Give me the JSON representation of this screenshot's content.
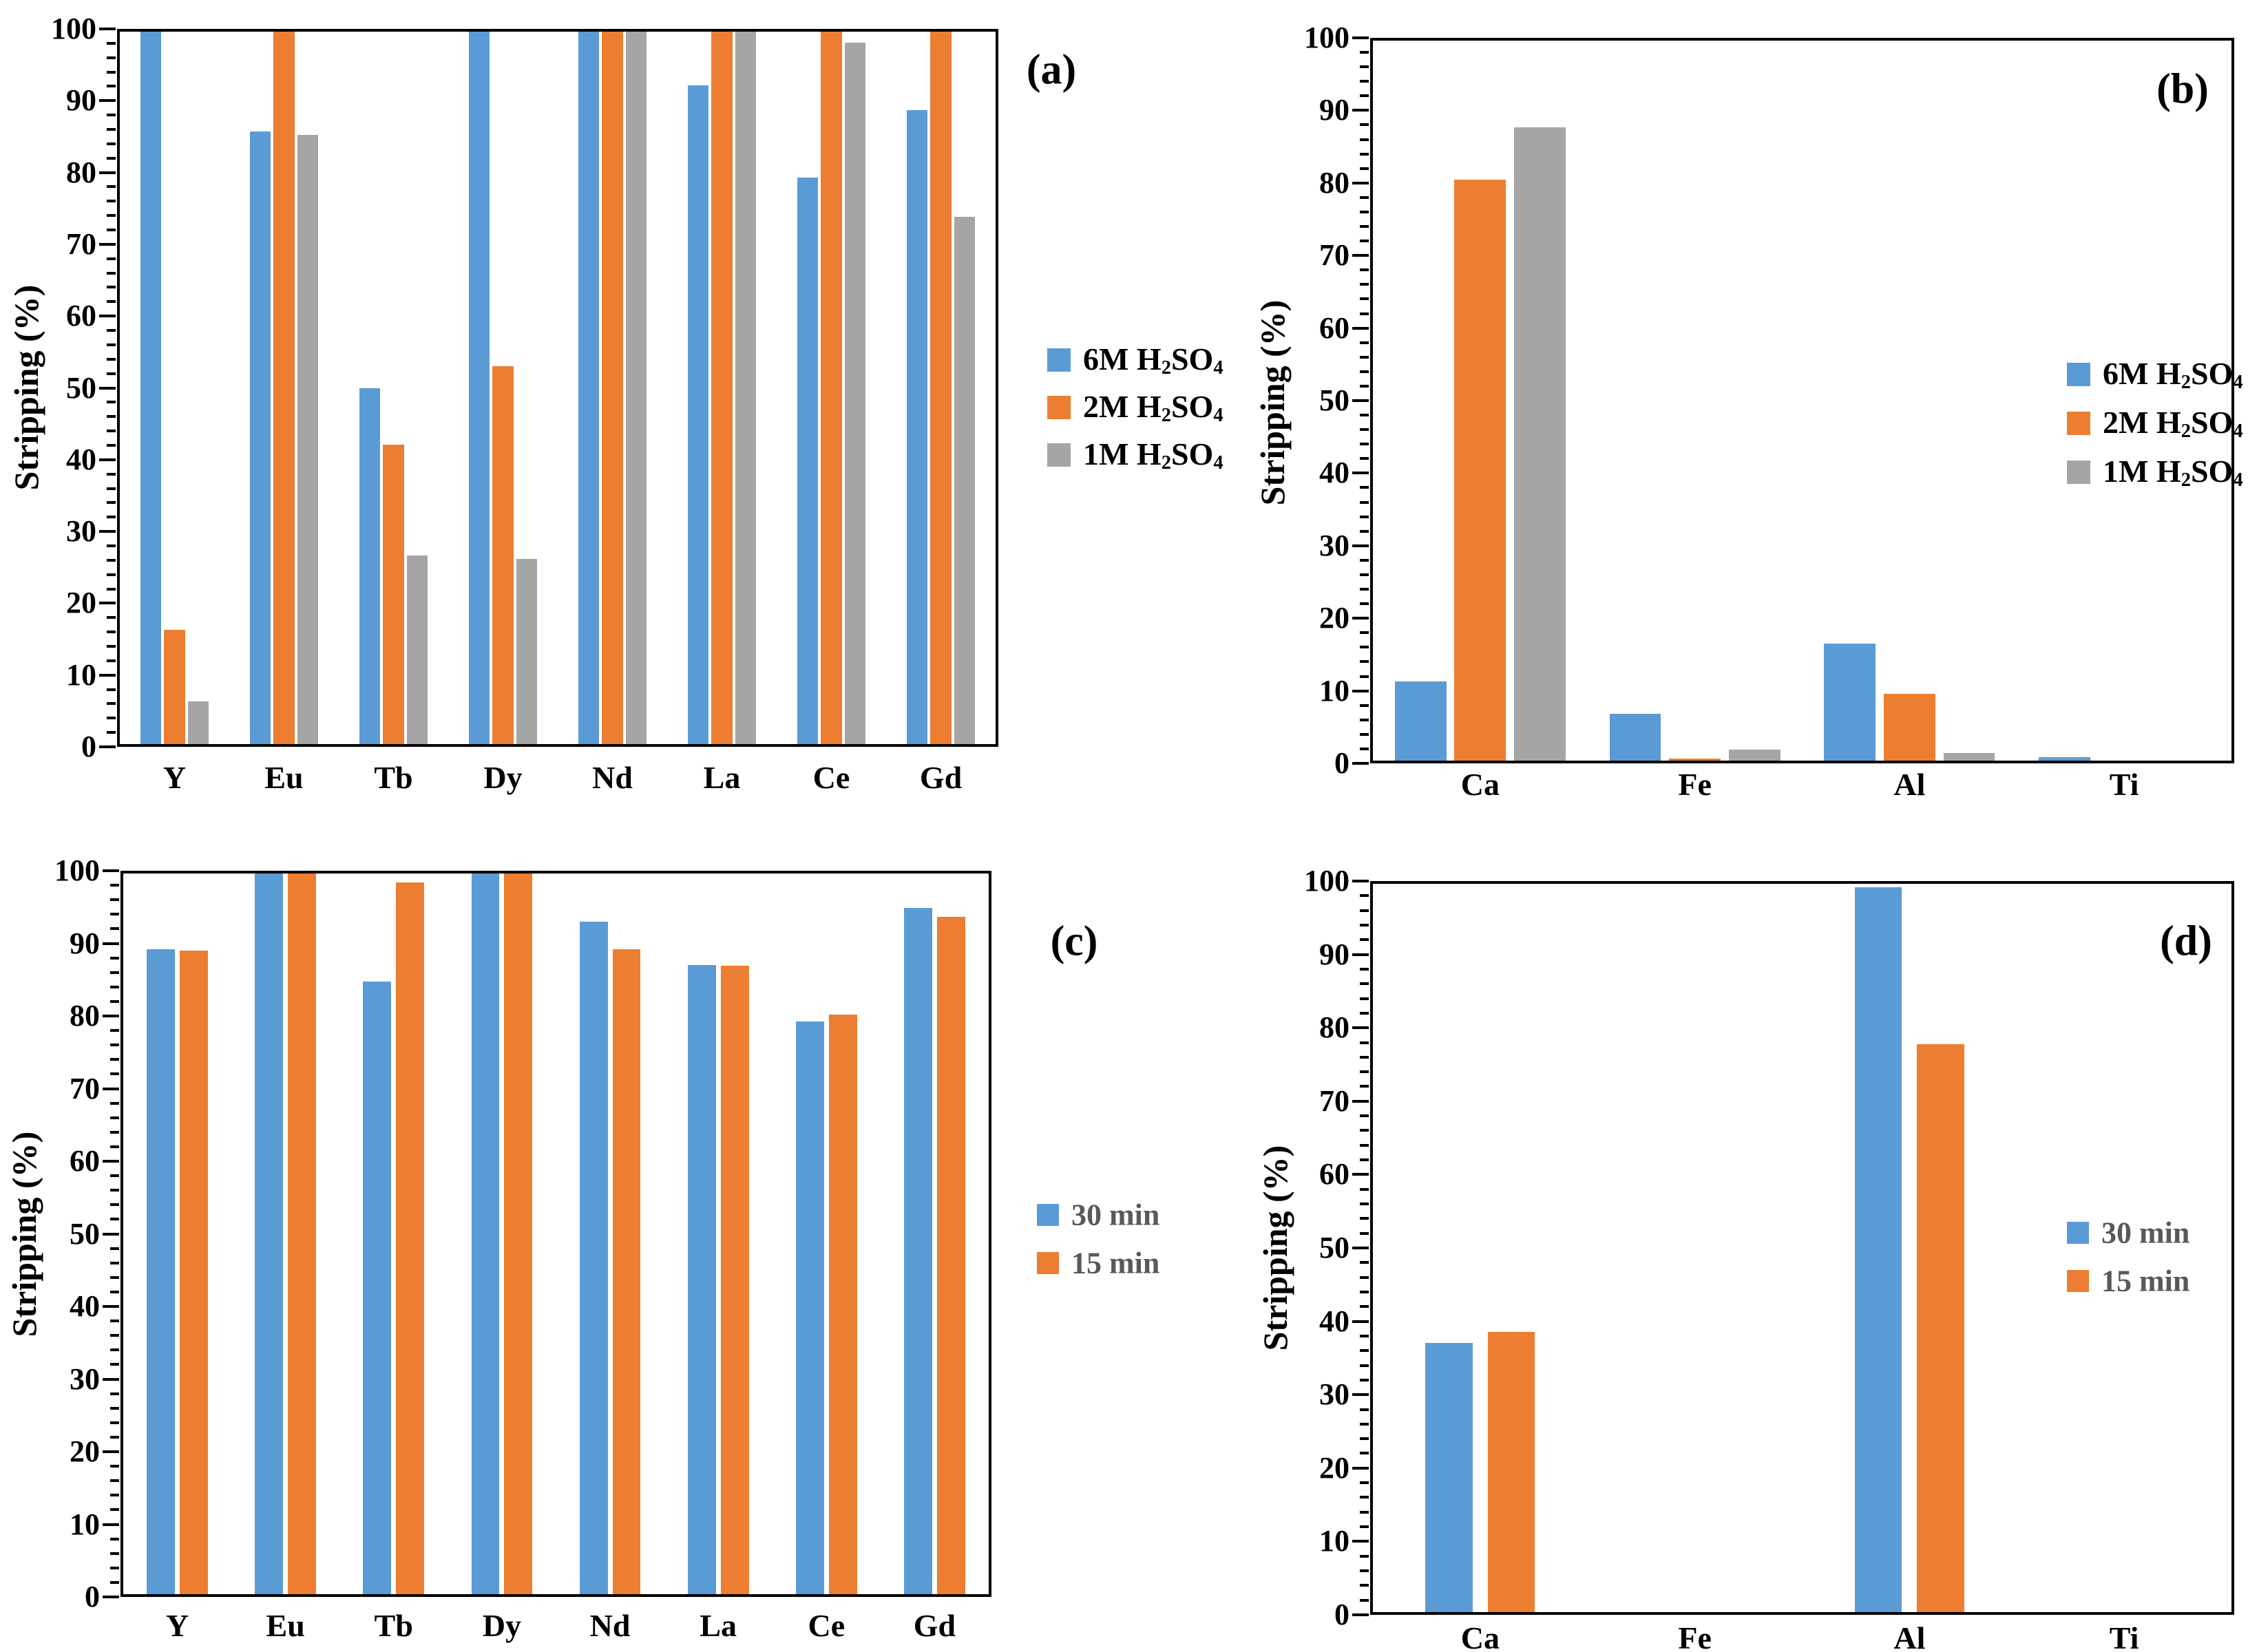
{
  "figure": {
    "background": "#ffffff",
    "axis_color": "#000000",
    "series_colors": {
      "blue": "#5B9BD5",
      "orange": "#ED7D31",
      "gray": "#A5A5A5"
    }
  },
  "chart_data": [
    {
      "id": "a",
      "type": "bar",
      "panel_label": "(a)",
      "title": "",
      "xlabel": "",
      "ylabel": "Stripping (%)",
      "ylim": [
        0,
        100
      ],
      "ytick_step": 10,
      "minor_tick_step": 2,
      "grid": false,
      "legend_position": "right-outside",
      "legend_text_color": "#000000",
      "categories": [
        "Y",
        "Eu",
        "Tb",
        "Dy",
        "Nd",
        "La",
        "Ce",
        "Gd"
      ],
      "series": [
        {
          "name": "6M H_2SO_4",
          "color": "#5B9BD5",
          "values": [
            100,
            86,
            50,
            100,
            100,
            92.5,
            79.5,
            89
          ]
        },
        {
          "name": "2M H_2SO_4",
          "color": "#ED7D31",
          "values": [
            16,
            100,
            42,
            53,
            100,
            100,
            100,
            100
          ]
        },
        {
          "name": "1M H_2SO_4",
          "color": "#A5A5A5",
          "values": [
            6,
            85.5,
            26.5,
            26,
            100,
            100,
            98.5,
            74
          ]
        }
      ]
    },
    {
      "id": "b",
      "type": "bar",
      "panel_label": "(b)",
      "title": "",
      "xlabel": "",
      "ylabel": "Stripping (%)",
      "ylim": [
        0,
        100
      ],
      "ytick_step": 10,
      "minor_tick_step": 2,
      "grid": false,
      "legend_position": "inside-right",
      "legend_text_color": "#000000",
      "categories": [
        "Ca",
        "Fe",
        "Al",
        "Ti"
      ],
      "series": [
        {
          "name": "6M H_2SO_4",
          "color": "#5B9BD5",
          "values": [
            11,
            6.5,
            16.3,
            0.5
          ]
        },
        {
          "name": "2M H_2SO_4",
          "color": "#ED7D31",
          "values": [
            80.7,
            0.3,
            9.3,
            0
          ]
        },
        {
          "name": "1M H_2SO_4",
          "color": "#A5A5A5",
          "values": [
            88,
            1.5,
            1.1,
            0
          ]
        }
      ]
    },
    {
      "id": "c",
      "type": "bar",
      "panel_label": "(c)",
      "title": "",
      "xlabel": "",
      "ylabel": "Stripping (%)",
      "ylim": [
        0,
        100
      ],
      "ytick_step": 10,
      "minor_tick_step": 2,
      "grid": false,
      "legend_position": "right-outside",
      "legend_text_color": "#595959",
      "categories": [
        "Y",
        "Eu",
        "Tb",
        "Dy",
        "Nd",
        "La",
        "Ce",
        "Gd"
      ],
      "series": [
        {
          "name": "30 min",
          "color": "#5B9BD5",
          "values": [
            89.5,
            100,
            85,
            100,
            93.3,
            87.3,
            79.5,
            95.2
          ]
        },
        {
          "name": "15 min",
          "color": "#ED7D31",
          "values": [
            89.3,
            100,
            98.8,
            100,
            89.5,
            87.2,
            80.4,
            94
          ]
        }
      ]
    },
    {
      "id": "d",
      "type": "bar",
      "panel_label": "(d)",
      "title": "",
      "xlabel": "",
      "ylabel": "Stripping (%)",
      "ylim": [
        0,
        100
      ],
      "ytick_step": 10,
      "minor_tick_step": 2,
      "grid": false,
      "legend_position": "inside-right",
      "legend_text_color": "#595959",
      "categories": [
        "Ca",
        "Fe",
        "Al",
        "Ti"
      ],
      "series": [
        {
          "name": "30 min",
          "color": "#5B9BD5",
          "values": [
            37,
            0,
            99.5,
            0
          ]
        },
        {
          "name": "15 min",
          "color": "#ED7D31",
          "values": [
            38.5,
            0,
            78,
            0
          ]
        }
      ]
    }
  ]
}
